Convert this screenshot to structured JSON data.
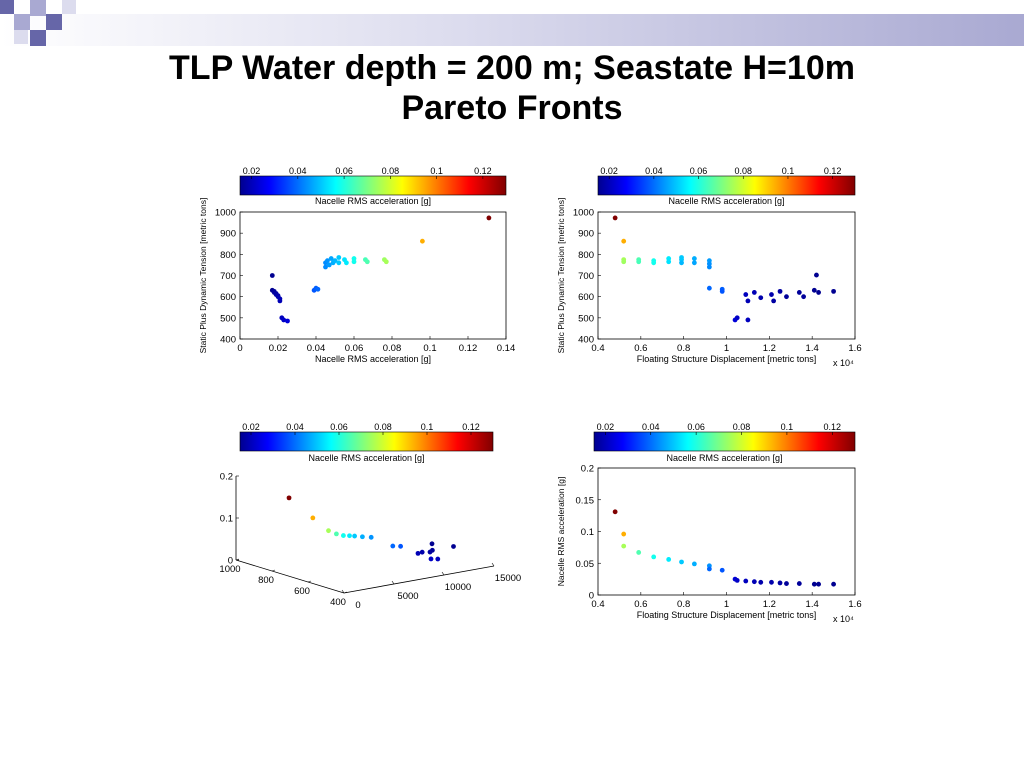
{
  "slide": {
    "title_line1": "TLP Water depth = 200 m; Seastate H=10m",
    "title_line2": "Pareto Fronts",
    "accent_colors": [
      "#a9a9d2",
      "#6666a8",
      "#dcdcee"
    ]
  },
  "colormap": {
    "name": "jet",
    "range": [
      0.015,
      0.13
    ],
    "ticks": [
      "0.02",
      "0.04",
      "0.06",
      "0.08",
      "0.1",
      "0.12"
    ],
    "label": "Nacelle RMS acceleration [g]"
  },
  "chart_data": [
    {
      "type": "scatter",
      "xlabel": "Nacelle RMS acceleration [g]",
      "ylabel": "Static Plus Dynamic Tension [metric tons]",
      "xlim": [
        0,
        0.14
      ],
      "ylim": [
        400,
        1000
      ],
      "xticks": [
        "0",
        "0.02",
        "0.04",
        "0.06",
        "0.08",
        "0.1",
        "0.12",
        "0.14"
      ],
      "yticks": [
        "400",
        "500",
        "600",
        "700",
        "800",
        "900",
        "1000"
      ],
      "x_exponent_label": "",
      "points": [
        {
          "x": 0.017,
          "y": 700,
          "c": 0.017
        },
        {
          "x": 0.017,
          "y": 630,
          "c": 0.017
        },
        {
          "x": 0.018,
          "y": 620,
          "c": 0.018
        },
        {
          "x": 0.018,
          "y": 625,
          "c": 0.018
        },
        {
          "x": 0.019,
          "y": 610,
          "c": 0.019
        },
        {
          "x": 0.019,
          "y": 615,
          "c": 0.019
        },
        {
          "x": 0.02,
          "y": 605,
          "c": 0.02
        },
        {
          "x": 0.02,
          "y": 600,
          "c": 0.02
        },
        {
          "x": 0.021,
          "y": 590,
          "c": 0.021
        },
        {
          "x": 0.021,
          "y": 580,
          "c": 0.021
        },
        {
          "x": 0.022,
          "y": 500,
          "c": 0.022
        },
        {
          "x": 0.023,
          "y": 490,
          "c": 0.023
        },
        {
          "x": 0.025,
          "y": 485,
          "c": 0.025
        },
        {
          "x": 0.039,
          "y": 630,
          "c": 0.039
        },
        {
          "x": 0.04,
          "y": 640,
          "c": 0.04
        },
        {
          "x": 0.041,
          "y": 635,
          "c": 0.041
        },
        {
          "x": 0.045,
          "y": 740,
          "c": 0.045
        },
        {
          "x": 0.045,
          "y": 760,
          "c": 0.045
        },
        {
          "x": 0.046,
          "y": 770,
          "c": 0.046
        },
        {
          "x": 0.047,
          "y": 750,
          "c": 0.047
        },
        {
          "x": 0.048,
          "y": 780,
          "c": 0.048
        },
        {
          "x": 0.049,
          "y": 760,
          "c": 0.049
        },
        {
          "x": 0.05,
          "y": 770,
          "c": 0.05
        },
        {
          "x": 0.052,
          "y": 785,
          "c": 0.052
        },
        {
          "x": 0.052,
          "y": 760,
          "c": 0.052
        },
        {
          "x": 0.055,
          "y": 775,
          "c": 0.055
        },
        {
          "x": 0.056,
          "y": 760,
          "c": 0.056
        },
        {
          "x": 0.06,
          "y": 780,
          "c": 0.06
        },
        {
          "x": 0.06,
          "y": 765,
          "c": 0.06
        },
        {
          "x": 0.066,
          "y": 775,
          "c": 0.066
        },
        {
          "x": 0.067,
          "y": 765,
          "c": 0.067
        },
        {
          "x": 0.076,
          "y": 775,
          "c": 0.076
        },
        {
          "x": 0.077,
          "y": 765,
          "c": 0.077
        },
        {
          "x": 0.096,
          "y": 862,
          "c": 0.096
        },
        {
          "x": 0.131,
          "y": 972,
          "c": 0.131
        }
      ]
    },
    {
      "type": "scatter",
      "xlabel": "Floating Structure Displacement [metric tons]",
      "ylabel": "Static Plus Dynamic Tension [metric tons]",
      "xlim": [
        0.4,
        1.6
      ],
      "ylim": [
        400,
        1000
      ],
      "xticks": [
        "0.4",
        "0.6",
        "0.8",
        "1",
        "1.2",
        "1.4",
        "1.6"
      ],
      "yticks": [
        "400",
        "500",
        "600",
        "700",
        "800",
        "900",
        "1000"
      ],
      "x_exponent_label": "x 10⁴",
      "points": [
        {
          "x": 0.48,
          "y": 972,
          "c": 0.131
        },
        {
          "x": 0.52,
          "y": 862,
          "c": 0.096
        },
        {
          "x": 0.52,
          "y": 775,
          "c": 0.077
        },
        {
          "x": 0.52,
          "y": 765,
          "c": 0.076
        },
        {
          "x": 0.59,
          "y": 775,
          "c": 0.067
        },
        {
          "x": 0.59,
          "y": 765,
          "c": 0.066
        },
        {
          "x": 0.66,
          "y": 770,
          "c": 0.06
        },
        {
          "x": 0.66,
          "y": 760,
          "c": 0.06
        },
        {
          "x": 0.73,
          "y": 780,
          "c": 0.056
        },
        {
          "x": 0.73,
          "y": 765,
          "c": 0.055
        },
        {
          "x": 0.79,
          "y": 785,
          "c": 0.052
        },
        {
          "x": 0.79,
          "y": 775,
          "c": 0.052
        },
        {
          "x": 0.79,
          "y": 760,
          "c": 0.05
        },
        {
          "x": 0.85,
          "y": 780,
          "c": 0.049
        },
        {
          "x": 0.85,
          "y": 760,
          "c": 0.048
        },
        {
          "x": 0.92,
          "y": 770,
          "c": 0.047
        },
        {
          "x": 0.92,
          "y": 755,
          "c": 0.046
        },
        {
          "x": 0.92,
          "y": 740,
          "c": 0.045
        },
        {
          "x": 0.92,
          "y": 640,
          "c": 0.041
        },
        {
          "x": 0.98,
          "y": 635,
          "c": 0.04
        },
        {
          "x": 0.98,
          "y": 625,
          "c": 0.039
        },
        {
          "x": 1.04,
          "y": 490,
          "c": 0.025
        },
        {
          "x": 1.05,
          "y": 500,
          "c": 0.023
        },
        {
          "x": 1.09,
          "y": 610,
          "c": 0.022
        },
        {
          "x": 1.1,
          "y": 580,
          "c": 0.021
        },
        {
          "x": 1.1,
          "y": 490,
          "c": 0.022
        },
        {
          "x": 1.13,
          "y": 620,
          "c": 0.021
        },
        {
          "x": 1.16,
          "y": 595,
          "c": 0.02
        },
        {
          "x": 1.21,
          "y": 610,
          "c": 0.02
        },
        {
          "x": 1.22,
          "y": 580,
          "c": 0.019
        },
        {
          "x": 1.25,
          "y": 625,
          "c": 0.019
        },
        {
          "x": 1.28,
          "y": 600,
          "c": 0.018
        },
        {
          "x": 1.34,
          "y": 620,
          "c": 0.018
        },
        {
          "x": 1.36,
          "y": 600,
          "c": 0.018
        },
        {
          "x": 1.41,
          "y": 630,
          "c": 0.017
        },
        {
          "x": 1.42,
          "y": 702,
          "c": 0.017
        },
        {
          "x": 1.43,
          "y": 620,
          "c": 0.017
        },
        {
          "x": 1.5,
          "y": 625,
          "c": 0.017
        }
      ]
    },
    {
      "type": "scatter",
      "dimensions": 3,
      "xlabel": "",
      "ylabel": "",
      "zlabel": "",
      "x_axis": {
        "lim": [
          400,
          1000
        ],
        "ticks": [
          "400",
          "600",
          "800",
          "1000"
        ]
      },
      "y_axis": {
        "lim": [
          0,
          15000
        ],
        "ticks": [
          "0",
          "5000",
          "10000",
          "15000"
        ]
      },
      "z_axis": {
        "lim": [
          0,
          0.2
        ],
        "ticks": [
          "0",
          "0.1",
          "0.2"
        ]
      },
      "points": [
        {
          "x": 972,
          "y": 4800,
          "z": 0.131,
          "c": 0.131
        },
        {
          "x": 862,
          "y": 5200,
          "z": 0.096,
          "c": 0.096
        },
        {
          "x": 775,
          "y": 5200,
          "z": 0.077,
          "c": 0.077
        },
        {
          "x": 770,
          "y": 5900,
          "z": 0.067,
          "c": 0.067
        },
        {
          "x": 770,
          "y": 6600,
          "z": 0.06,
          "c": 0.06
        },
        {
          "x": 775,
          "y": 7300,
          "z": 0.056,
          "c": 0.056
        },
        {
          "x": 780,
          "y": 7900,
          "z": 0.052,
          "c": 0.052
        },
        {
          "x": 770,
          "y": 8500,
          "z": 0.049,
          "c": 0.049
        },
        {
          "x": 760,
          "y": 9200,
          "z": 0.046,
          "c": 0.046
        },
        {
          "x": 640,
          "y": 9200,
          "z": 0.041,
          "c": 0.041
        },
        {
          "x": 630,
          "y": 9800,
          "z": 0.039,
          "c": 0.039
        },
        {
          "x": 500,
          "y": 10500,
          "z": 0.023,
          "c": 0.023
        },
        {
          "x": 490,
          "y": 11000,
          "z": 0.022,
          "c": 0.022
        },
        {
          "x": 600,
          "y": 11000,
          "z": 0.021,
          "c": 0.021
        },
        {
          "x": 610,
          "y": 11600,
          "z": 0.02,
          "c": 0.02
        },
        {
          "x": 600,
          "y": 12200,
          "z": 0.019,
          "c": 0.019
        },
        {
          "x": 620,
          "y": 12800,
          "z": 0.018,
          "c": 0.018
        },
        {
          "x": 700,
          "y": 14200,
          "z": 0.017,
          "c": 0.017
        },
        {
          "x": 625,
          "y": 15000,
          "z": 0.017,
          "c": 0.017
        }
      ]
    },
    {
      "type": "scatter",
      "xlabel": "Floating Structure Displacement [metric tons]",
      "ylabel": "Nacelle RMS acceleration [g]",
      "xlim": [
        0.4,
        1.6
      ],
      "ylim": [
        0,
        0.2
      ],
      "xticks": [
        "0.4",
        "0.6",
        "0.8",
        "1",
        "1.2",
        "1.4",
        "1.6"
      ],
      "yticks": [
        "0",
        "0.05",
        "0.1",
        "0.15",
        "0.2"
      ],
      "x_exponent_label": "x 10⁴",
      "points": [
        {
          "x": 0.48,
          "y": 0.131,
          "c": 0.131
        },
        {
          "x": 0.52,
          "y": 0.096,
          "c": 0.096
        },
        {
          "x": 0.52,
          "y": 0.077,
          "c": 0.077
        },
        {
          "x": 0.59,
          "y": 0.067,
          "c": 0.067
        },
        {
          "x": 0.66,
          "y": 0.06,
          "c": 0.06
        },
        {
          "x": 0.73,
          "y": 0.056,
          "c": 0.056
        },
        {
          "x": 0.79,
          "y": 0.052,
          "c": 0.052
        },
        {
          "x": 0.85,
          "y": 0.049,
          "c": 0.049
        },
        {
          "x": 0.92,
          "y": 0.046,
          "c": 0.046
        },
        {
          "x": 0.92,
          "y": 0.041,
          "c": 0.041
        },
        {
          "x": 0.98,
          "y": 0.039,
          "c": 0.039
        },
        {
          "x": 1.04,
          "y": 0.025,
          "c": 0.025
        },
        {
          "x": 1.05,
          "y": 0.023,
          "c": 0.023
        },
        {
          "x": 1.09,
          "y": 0.022,
          "c": 0.022
        },
        {
          "x": 1.13,
          "y": 0.021,
          "c": 0.021
        },
        {
          "x": 1.16,
          "y": 0.02,
          "c": 0.02
        },
        {
          "x": 1.21,
          "y": 0.02,
          "c": 0.02
        },
        {
          "x": 1.25,
          "y": 0.019,
          "c": 0.019
        },
        {
          "x": 1.28,
          "y": 0.018,
          "c": 0.018
        },
        {
          "x": 1.34,
          "y": 0.018,
          "c": 0.018
        },
        {
          "x": 1.41,
          "y": 0.017,
          "c": 0.017
        },
        {
          "x": 1.43,
          "y": 0.017,
          "c": 0.017
        },
        {
          "x": 1.5,
          "y": 0.017,
          "c": 0.017
        }
      ]
    }
  ]
}
